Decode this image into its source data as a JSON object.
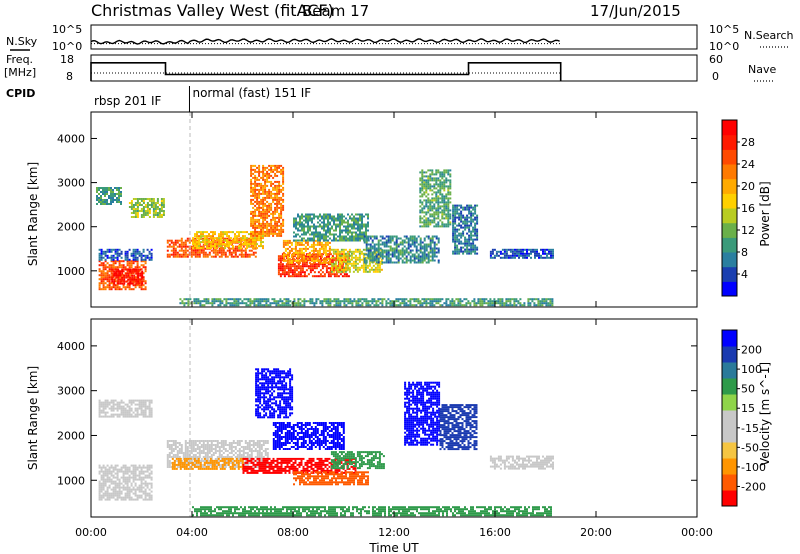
{
  "header": {
    "title": "Christmas Valley West (fitACF)",
    "beam": "Beam 17",
    "date": "17/Jun/2015"
  },
  "noise_panel": {
    "left_label": "N.Sky",
    "right_label": "N.Search",
    "left_ticks": [
      "10^5",
      "10^0"
    ],
    "right_ticks": [
      "10^5",
      "10^0"
    ]
  },
  "freq_panel": {
    "left_label_1": "Freq.",
    "left_label_2": "[MHz]",
    "right_label": "Nave",
    "left_ticks": [
      "18",
      "8"
    ],
    "right_ticks": [
      "60",
      "0"
    ]
  },
  "cpid": {
    "label": "CPID",
    "segments": [
      {
        "label": "rbsp 201 IF",
        "start_hour": 0.0
      },
      {
        "label": "normal (fast) 151 IF",
        "start_hour": 3.9
      }
    ]
  },
  "power_colorbar": {
    "title": "Power [dB]",
    "ticks": [
      "28",
      "24",
      "20",
      "16",
      "12",
      "8",
      "4"
    ],
    "colors": [
      "#0000ff",
      "#1a3fb0",
      "#2a7fa0",
      "#3a9a7a",
      "#6ab04a",
      "#b8cc22",
      "#ffd000",
      "#ffaa00",
      "#ff7a00",
      "#ff4a00",
      "#ff1a00",
      "#ff0000"
    ]
  },
  "velocity_colorbar": {
    "title": "Velocity [m s^-1]",
    "ticks": [
      "200",
      "100",
      "50",
      "15",
      "-15",
      "-50",
      "-100",
      "-200"
    ],
    "colors": [
      "#ff0000",
      "#ff5a00",
      "#ff9500",
      "#f5c542",
      "#c8c8c8",
      "#c8c8c8",
      "#8fd44a",
      "#2e9a4a",
      "#2a7a9a",
      "#1a3ab0",
      "#0000ff"
    ]
  },
  "chart_data": {
    "type": "heatmap",
    "title": "Christmas Valley West (fitACF)",
    "xlabel": "Time UT",
    "ylabel": "Slant Range [km]",
    "x_ticks": [
      "00:00",
      "04:00",
      "08:00",
      "12:00",
      "16:00",
      "20:00",
      "00:00"
    ],
    "xlim_hours": [
      0,
      24
    ],
    "y_ticks": [
      "4000",
      "3000",
      "2000",
      "1000"
    ],
    "ylim_km": [
      180,
      4600
    ],
    "noise_sky_level": 1.5,
    "noise_search_level": 1.2,
    "freq_mhz": [
      {
        "start": 0.0,
        "end": 2.95,
        "value": 15
      },
      {
        "start": 2.95,
        "end": 14.95,
        "value": 10.5
      },
      {
        "start": 14.95,
        "end": 18.6,
        "value": 15
      }
    ],
    "power_blobs": [
      {
        "h0": 0.3,
        "h1": 2.2,
        "r0": 560,
        "r1": 1240,
        "v": 24
      },
      {
        "h0": 0.8,
        "h1": 2.0,
        "r0": 700,
        "r1": 1050,
        "v": 28
      },
      {
        "h0": 0.3,
        "h1": 2.4,
        "r0": 1250,
        "r1": 1500,
        "v": 6
      },
      {
        "h0": 1.5,
        "h1": 2.9,
        "r0": 2200,
        "r1": 2650,
        "v": 14
      },
      {
        "h0": 0.2,
        "h1": 1.2,
        "r0": 2500,
        "r1": 2900,
        "v": 10
      },
      {
        "h0": 3.0,
        "h1": 6.5,
        "r0": 1300,
        "r1": 1750,
        "v": 24
      },
      {
        "h0": 4.0,
        "h1": 6.8,
        "r0": 1500,
        "r1": 1900,
        "v": 18
      },
      {
        "h0": 6.3,
        "h1": 7.6,
        "r0": 1800,
        "r1": 3400,
        "v": 22
      },
      {
        "h0": 7.4,
        "h1": 10.2,
        "r0": 900,
        "r1": 1400,
        "v": 26
      },
      {
        "h0": 7.6,
        "h1": 9.5,
        "r0": 1200,
        "r1": 1700,
        "v": 20
      },
      {
        "h0": 9.5,
        "h1": 11.5,
        "r0": 1000,
        "r1": 1500,
        "v": 16
      },
      {
        "h0": 8.0,
        "h1": 11.0,
        "r0": 1700,
        "r1": 2300,
        "v": 10
      },
      {
        "h0": 10.8,
        "h1": 13.8,
        "r0": 1200,
        "r1": 1800,
        "v": 9
      },
      {
        "h0": 13.0,
        "h1": 14.2,
        "r0": 2000,
        "r1": 3300,
        "v": 11
      },
      {
        "h0": 14.3,
        "h1": 15.3,
        "r0": 1400,
        "r1": 2500,
        "v": 8
      },
      {
        "h0": 15.8,
        "h1": 18.3,
        "r0": 1300,
        "r1": 1500,
        "v": 6
      },
      {
        "h0": 3.5,
        "h1": 18.3,
        "r0": 200,
        "r1": 380,
        "v": 10
      }
    ],
    "velocity_blobs": [
      {
        "h0": 0.3,
        "h1": 2.4,
        "r0": 560,
        "r1": 1350,
        "v": 0
      },
      {
        "h0": 0.3,
        "h1": 2.4,
        "r0": 2400,
        "r1": 2800,
        "v": 0
      },
      {
        "h0": 3.0,
        "h1": 7.0,
        "r0": 1300,
        "r1": 1900,
        "v": 0
      },
      {
        "h0": 3.2,
        "h1": 6.0,
        "r0": 1250,
        "r1": 1500,
        "v": -60
      },
      {
        "h0": 6.5,
        "h1": 8.0,
        "r0": 2400,
        "r1": 3500,
        "v": 300
      },
      {
        "h0": 7.2,
        "h1": 10.0,
        "r0": 1700,
        "r1": 2300,
        "v": 250
      },
      {
        "h0": 6.0,
        "h1": 10.5,
        "r0": 1150,
        "r1": 1500,
        "v": -250
      },
      {
        "h0": 8.0,
        "h1": 11.0,
        "r0": 900,
        "r1": 1200,
        "v": -120
      },
      {
        "h0": 9.5,
        "h1": 11.6,
        "r0": 1250,
        "r1": 1650,
        "v": 40
      },
      {
        "h0": 12.4,
        "h1": 13.8,
        "r0": 1800,
        "r1": 3200,
        "v": 250
      },
      {
        "h0": 13.8,
        "h1": 15.3,
        "r0": 1700,
        "r1": 2700,
        "v": 150
      },
      {
        "h0": 15.8,
        "h1": 18.3,
        "r0": 1250,
        "r1": 1550,
        "v": 0
      },
      {
        "h0": 4.0,
        "h1": 18.3,
        "r0": 200,
        "r1": 420,
        "v": 30
      }
    ]
  }
}
